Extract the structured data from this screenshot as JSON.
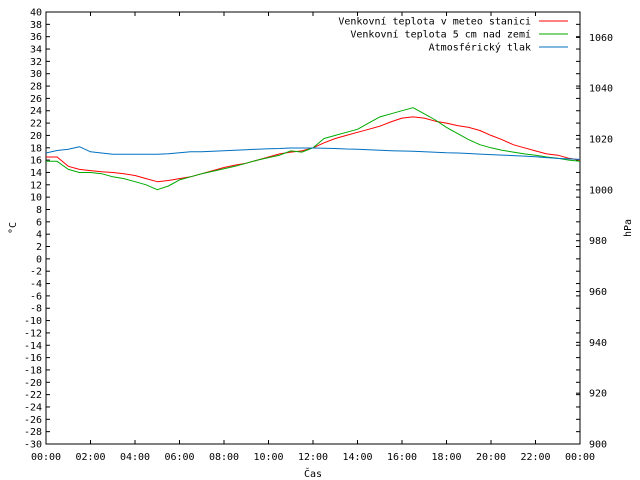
{
  "chart_data": {
    "type": "line",
    "xlabel": "Čas",
    "ylabel_left": "°C",
    "ylabel_right": "hPa",
    "x_ticks": [
      "00:00",
      "02:00",
      "04:00",
      "06:00",
      "08:00",
      "10:00",
      "12:00",
      "14:00",
      "16:00",
      "18:00",
      "20:00",
      "22:00",
      "00:00"
    ],
    "x_range_hours": [
      0,
      24
    ],
    "ylim_left": [
      -30,
      40
    ],
    "ylim_right": [
      900,
      1070
    ],
    "left_ticks": [
      "-30",
      "-28",
      "-26",
      "-24",
      "-22",
      "-20",
      "-18",
      "-16",
      "-14",
      "-12",
      "-10",
      "-8",
      "-6",
      "-4",
      "-2",
      "0",
      "2",
      "4",
      "6",
      "8",
      "10",
      "12",
      "14",
      "16",
      "18",
      "20",
      "22",
      "24",
      "26",
      "28",
      "30",
      "32",
      "34",
      "36",
      "38",
      "40"
    ],
    "right_ticks": [
      "900",
      "920",
      "940",
      "960",
      "980",
      "1000",
      "1020",
      "1040",
      "1060"
    ],
    "grid": false,
    "legend_position": "top-right",
    "series": [
      {
        "name": "Venkovní teplota v meteo stanici",
        "color": "#ff0000",
        "axis": "left",
        "x": [
          0,
          0.5,
          1,
          1.5,
          2,
          2.5,
          3,
          3.5,
          4,
          4.5,
          5,
          5.5,
          6,
          6.5,
          7,
          7.5,
          8,
          8.5,
          9,
          9.5,
          10,
          10.5,
          11,
          11.5,
          12,
          12.5,
          13,
          13.5,
          14,
          14.5,
          15,
          15.5,
          16,
          16.5,
          17,
          17.5,
          18,
          18.5,
          19,
          19.5,
          20,
          20.5,
          21,
          21.5,
          22,
          22.5,
          23,
          23.5,
          24
        ],
        "values": [
          16.5,
          16.5,
          15.0,
          14.5,
          14.3,
          14.1,
          14.0,
          13.8,
          13.5,
          13.0,
          12.5,
          12.7,
          13.0,
          13.3,
          13.8,
          14.3,
          14.8,
          15.2,
          15.5,
          16.0,
          16.5,
          17.0,
          17.3,
          17.5,
          18.0,
          18.8,
          19.5,
          20.0,
          20.5,
          21.0,
          21.5,
          22.2,
          22.8,
          23.0,
          22.8,
          22.3,
          22.0,
          21.6,
          21.3,
          20.8,
          20.0,
          19.3,
          18.5,
          18.0,
          17.5,
          17.0,
          16.8,
          16.3,
          16.0
        ]
      },
      {
        "name": "Venkovní teplota 5 cm nad zemí",
        "color": "#00aa00",
        "axis": "left",
        "x": [
          0,
          0.5,
          1,
          1.5,
          2,
          2.5,
          3,
          3.5,
          4,
          4.5,
          5,
          5.5,
          6,
          6.5,
          7,
          7.5,
          8,
          8.5,
          9,
          9.5,
          10,
          10.5,
          11,
          11.5,
          12,
          12.5,
          13,
          13.5,
          14,
          14.5,
          15,
          15.5,
          16,
          16.5,
          17,
          17.5,
          18,
          18.5,
          19,
          19.5,
          20,
          20.5,
          21,
          21.5,
          22,
          22.5,
          23,
          23.5,
          24
        ],
        "values": [
          15.8,
          15.8,
          14.5,
          14.0,
          14.0,
          13.8,
          13.3,
          13.0,
          12.5,
          12.0,
          11.2,
          11.8,
          12.8,
          13.3,
          13.8,
          14.2,
          14.6,
          15.0,
          15.5,
          16.0,
          16.4,
          16.8,
          17.5,
          17.3,
          18.0,
          19.5,
          20.0,
          20.5,
          21.0,
          22.0,
          23.0,
          23.5,
          24.0,
          24.5,
          23.5,
          22.5,
          21.3,
          20.3,
          19.3,
          18.5,
          18.0,
          17.6,
          17.3,
          17.0,
          16.8,
          16.5,
          16.3,
          16.0,
          15.8
        ]
      },
      {
        "name": "Atmosférický tlak",
        "color": "#0070c0",
        "axis": "right",
        "x": [
          0,
          0.5,
          1,
          1.5,
          2,
          2.5,
          3,
          3.5,
          4,
          4.5,
          5,
          5.5,
          6,
          6.5,
          7,
          7.5,
          8,
          8.5,
          9,
          9.5,
          10,
          10.5,
          11,
          11.5,
          12,
          12.5,
          13,
          13.5,
          14,
          14.5,
          15,
          15.5,
          16,
          16.5,
          17,
          17.5,
          18,
          18.5,
          19,
          19.5,
          20,
          20.5,
          21,
          21.5,
          22,
          22.5,
          23,
          23.5,
          24
        ],
        "values": [
          1014.5,
          1015.5,
          1016.0,
          1017.0,
          1015.0,
          1014.5,
          1014.0,
          1014.0,
          1014.0,
          1014.0,
          1014.0,
          1014.2,
          1014.6,
          1015.0,
          1015.0,
          1015.2,
          1015.4,
          1015.6,
          1015.8,
          1016.0,
          1016.2,
          1016.3,
          1016.5,
          1016.5,
          1016.5,
          1016.4,
          1016.3,
          1016.1,
          1016.0,
          1015.8,
          1015.6,
          1015.4,
          1015.3,
          1015.2,
          1015.0,
          1014.8,
          1014.6,
          1014.5,
          1014.3,
          1014.1,
          1013.9,
          1013.7,
          1013.5,
          1013.3,
          1013.0,
          1012.7,
          1012.4,
          1012.2,
          1012.0
        ]
      }
    ]
  }
}
